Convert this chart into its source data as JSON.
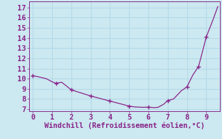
{
  "x": [
    0,
    0.25,
    0.7,
    1.0,
    1.2,
    1.5,
    2.0,
    2.5,
    3.0,
    3.5,
    4.0,
    4.5,
    5.0,
    5.3,
    5.7,
    6.0,
    6.3,
    6.5,
    6.8,
    7.0,
    7.3,
    7.7,
    8.0,
    8.3,
    8.6,
    9.0,
    9.35,
    9.6
  ],
  "y": [
    10.3,
    10.2,
    10.0,
    9.7,
    9.55,
    9.65,
    8.9,
    8.6,
    8.3,
    8.05,
    7.8,
    7.55,
    7.3,
    7.22,
    7.18,
    7.2,
    7.15,
    7.18,
    7.5,
    7.85,
    8.0,
    8.8,
    9.2,
    10.35,
    11.2,
    14.1,
    15.8,
    17.1
  ],
  "line_color": "#882288",
  "marker_x": [
    0,
    1.2,
    2.0,
    3.0,
    4.0,
    5.0,
    6.0,
    7.0,
    8.0,
    8.6,
    9.0
  ],
  "marker_y": [
    10.3,
    9.55,
    8.9,
    8.3,
    7.8,
    7.3,
    7.2,
    7.85,
    9.2,
    11.2,
    14.1
  ],
  "xlabel": "Windchill (Refroidissement éolien,°C)",
  "bg_color": "#cce8f0",
  "grid_color": "#b0d8e8",
  "yticks": [
    7,
    8,
    9,
    10,
    11,
    12,
    13,
    14,
    15,
    16,
    17
  ],
  "xticks": [
    0,
    1,
    2,
    3,
    4,
    5,
    6,
    7,
    8,
    9
  ],
  "xlim": [
    -0.2,
    9.7
  ],
  "ylim": [
    6.8,
    17.6
  ],
  "xlabel_fontsize": 7.5,
  "tick_fontsize": 7.5
}
